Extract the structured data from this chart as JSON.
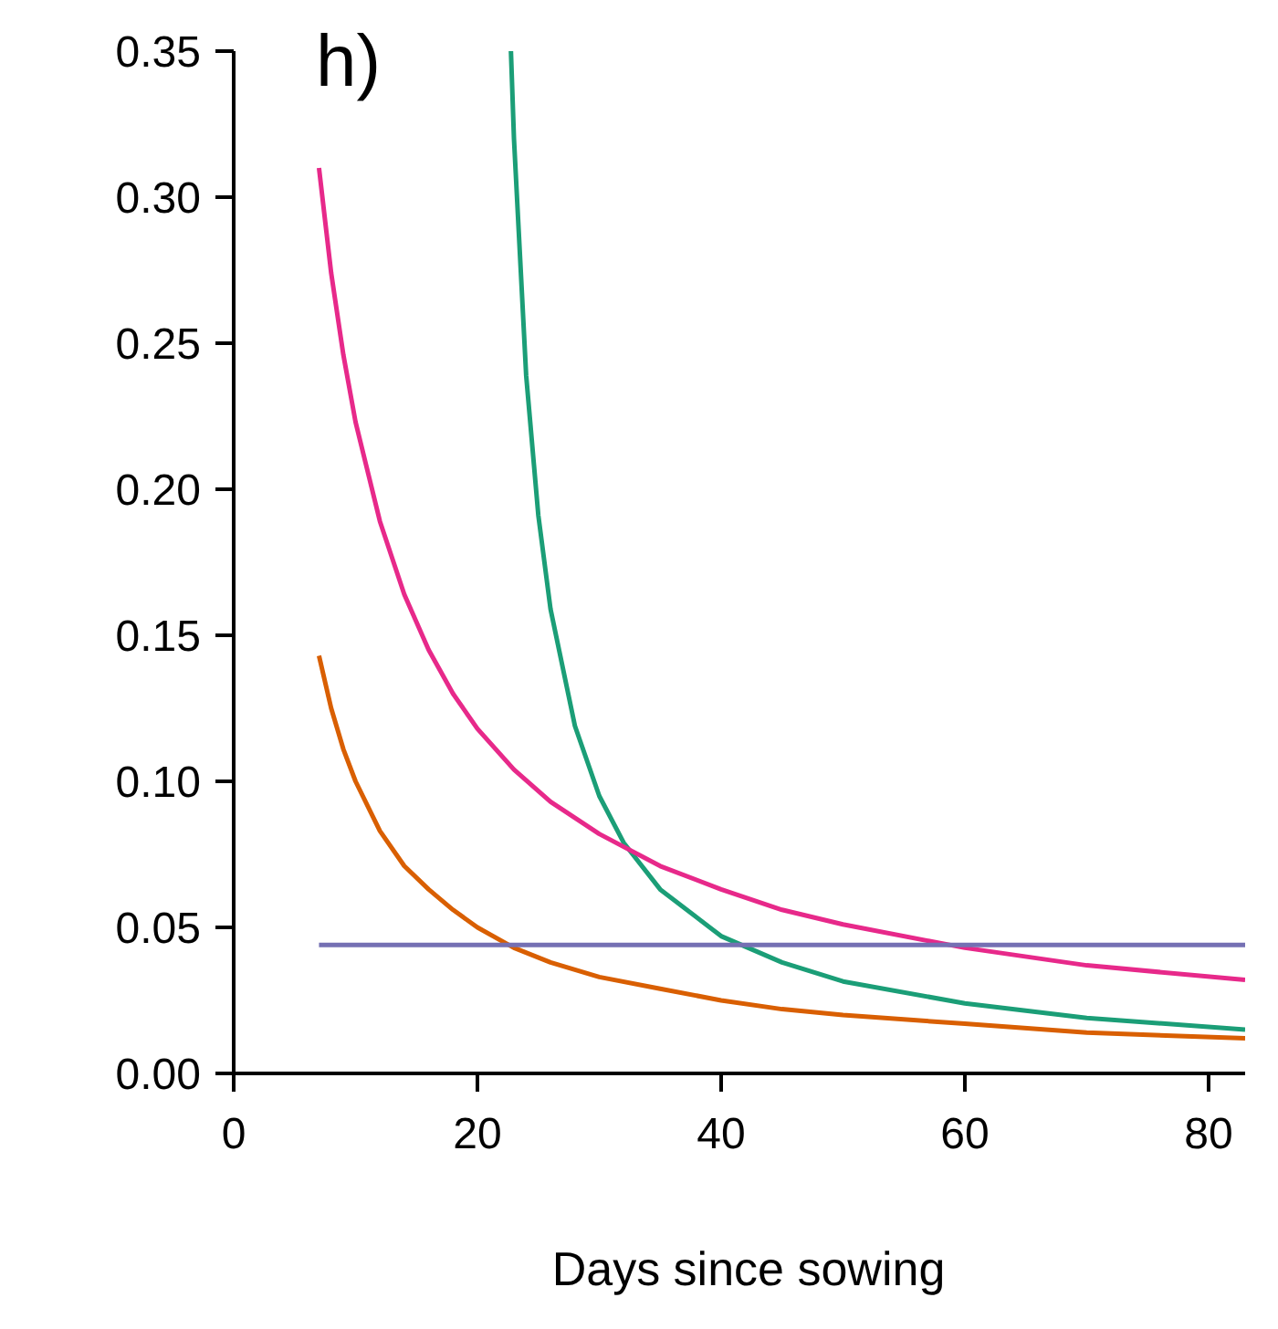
{
  "chart_data": {
    "type": "line",
    "title": "h)",
    "xlabel": "Days since sowing",
    "xlim": [
      0,
      83
    ],
    "xticks": [
      0,
      20,
      40,
      60,
      80
    ],
    "ylim": [
      0,
      0.35
    ],
    "yticks": [
      {
        "value": 0,
        "label": "0.00"
      },
      {
        "value": 0.05,
        "label": "0.05"
      },
      {
        "value": 0.1,
        "label": "0.10"
      },
      {
        "value": 0.15,
        "label": "0.15"
      },
      {
        "value": 0.2,
        "label": "0.20"
      },
      {
        "value": 0.25,
        "label": "0.25"
      },
      {
        "value": 0.3,
        "label": "0.30"
      },
      {
        "value": 0.35,
        "label": "0.35"
      }
    ],
    "grid": false,
    "marker": "none",
    "line_style": "solid",
    "series": [
      {
        "color": "#1b9e77",
        "x": [
          22.75,
          23,
          24,
          25,
          26,
          28,
          30,
          32,
          35,
          40,
          45,
          50,
          60,
          70,
          83
        ],
        "values": [
          0.35,
          0.32,
          0.239,
          0.191,
          0.159,
          0.119,
          0.095,
          0.079,
          0.063,
          0.047,
          0.038,
          0.0315,
          0.024,
          0.019,
          0.015
        ]
      },
      {
        "color": "#e7298a",
        "x": [
          7,
          8,
          9,
          10,
          12,
          14,
          16,
          18,
          20,
          23,
          26,
          30,
          35,
          40,
          45,
          50,
          60,
          70,
          83
        ],
        "values": [
          0.31,
          0.274,
          0.246,
          0.223,
          0.189,
          0.164,
          0.145,
          0.13,
          0.118,
          0.104,
          0.093,
          0.082,
          0.071,
          0.063,
          0.056,
          0.051,
          0.043,
          0.037,
          0.032
        ]
      },
      {
        "color": "#d95f02",
        "x": [
          7,
          8,
          9,
          10,
          12,
          14,
          16,
          18,
          20,
          23,
          26,
          30,
          35,
          40,
          45,
          50,
          60,
          70,
          83
        ],
        "values": [
          0.143,
          0.125,
          0.111,
          0.1,
          0.083,
          0.071,
          0.063,
          0.056,
          0.05,
          0.043,
          0.038,
          0.033,
          0.029,
          0.025,
          0.022,
          0.02,
          0.017,
          0.014,
          0.012
        ]
      },
      {
        "color": "#7570b3",
        "x": [
          7,
          83
        ],
        "values": [
          0.044,
          0.044
        ]
      }
    ]
  }
}
